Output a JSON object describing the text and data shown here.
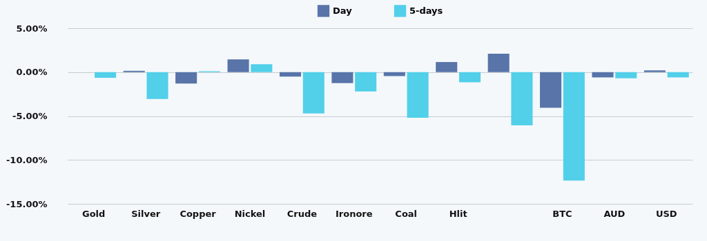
{
  "chart_data": {
    "type": "bar",
    "categories": [
      "Gold",
      "Silver",
      "Copper",
      "Nickel",
      "Crude",
      "Ironore",
      "Coal",
      "Hlit",
      null,
      "BTC",
      "AUD",
      "USD"
    ],
    "series": [
      {
        "name": "Day",
        "color": "#5874a8",
        "values": [
          0,
          0.15,
          -1.3,
          1.45,
          -0.5,
          -1.25,
          -0.45,
          1.15,
          2.1,
          -4.05,
          -0.6,
          0.2
        ]
      },
      {
        "name": "5-days",
        "color": "#52cfe9",
        "values": [
          -0.65,
          -3.05,
          0.1,
          0.9,
          -4.7,
          -2.2,
          -5.2,
          -1.15,
          -6.05,
          -12.35,
          -0.7,
          -0.6
        ]
      }
    ],
    "ylim": [
      -15,
      5
    ],
    "yticks": [
      {
        "value": -15,
        "label": "-15.00%"
      },
      {
        "value": -10,
        "label": "-10.00%"
      },
      {
        "value": -5,
        "label": "-5.00%"
      },
      {
        "value": 0,
        "label": "0.00%"
      },
      {
        "value": 5,
        "label": "5.00%"
      }
    ],
    "grid": "y",
    "legend": "top"
  }
}
